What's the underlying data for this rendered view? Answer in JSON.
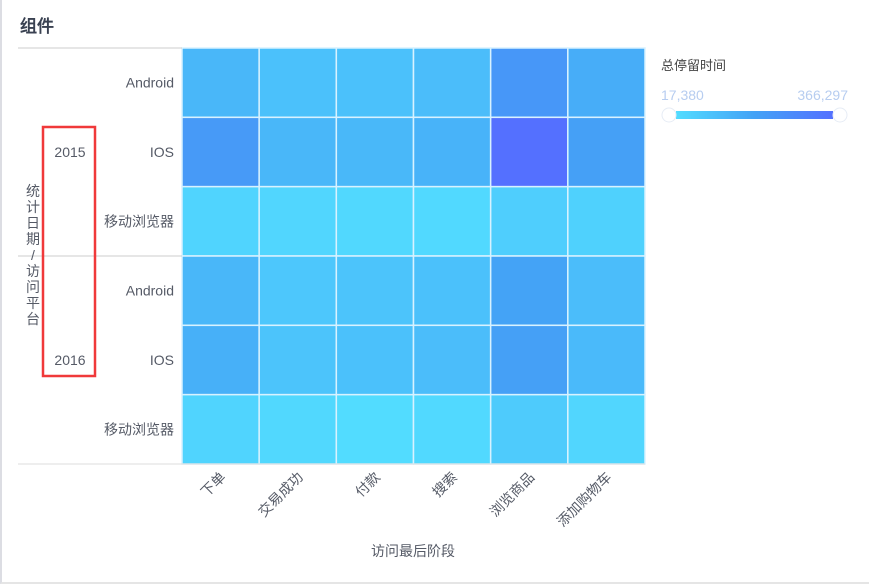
{
  "page": {
    "title": "组件"
  },
  "chart_data": {
    "type": "heatmap",
    "xlabel": "访问最后阶段",
    "ylabel": "统计日期/访问平台",
    "x_categories": [
      "下单",
      "交易成功",
      "付款",
      "搜索",
      "浏览商品",
      "添加购物车"
    ],
    "y_groups": [
      {
        "group": "2015",
        "rows": [
          "Android",
          "IOS",
          "移动浏览器"
        ]
      },
      {
        "group": "2016",
        "rows": [
          "Android",
          "IOS",
          "移动浏览器"
        ]
      }
    ],
    "values": [
      [
        130000,
        100000,
        100000,
        110000,
        230000,
        160000
      ],
      [
        220000,
        130000,
        125000,
        140000,
        366297,
        200000
      ],
      [
        40000,
        35000,
        30000,
        25000,
        60000,
        50000
      ],
      [
        130000,
        80000,
        90000,
        100000,
        190000,
        110000
      ],
      [
        150000,
        90000,
        100000,
        110000,
        200000,
        120000
      ],
      [
        40000,
        30000,
        17380,
        25000,
        70000,
        35000
      ]
    ],
    "legend": {
      "title": "总停留时间",
      "min_label": "17,380",
      "max_label": "366,297",
      "min": 17380,
      "max": 366297,
      "placement": "top-right"
    },
    "colors": {
      "low": "#52dcff",
      "mid": "#44a2f6",
      "high": "#5470ff",
      "highlight": "#f0393a"
    }
  }
}
